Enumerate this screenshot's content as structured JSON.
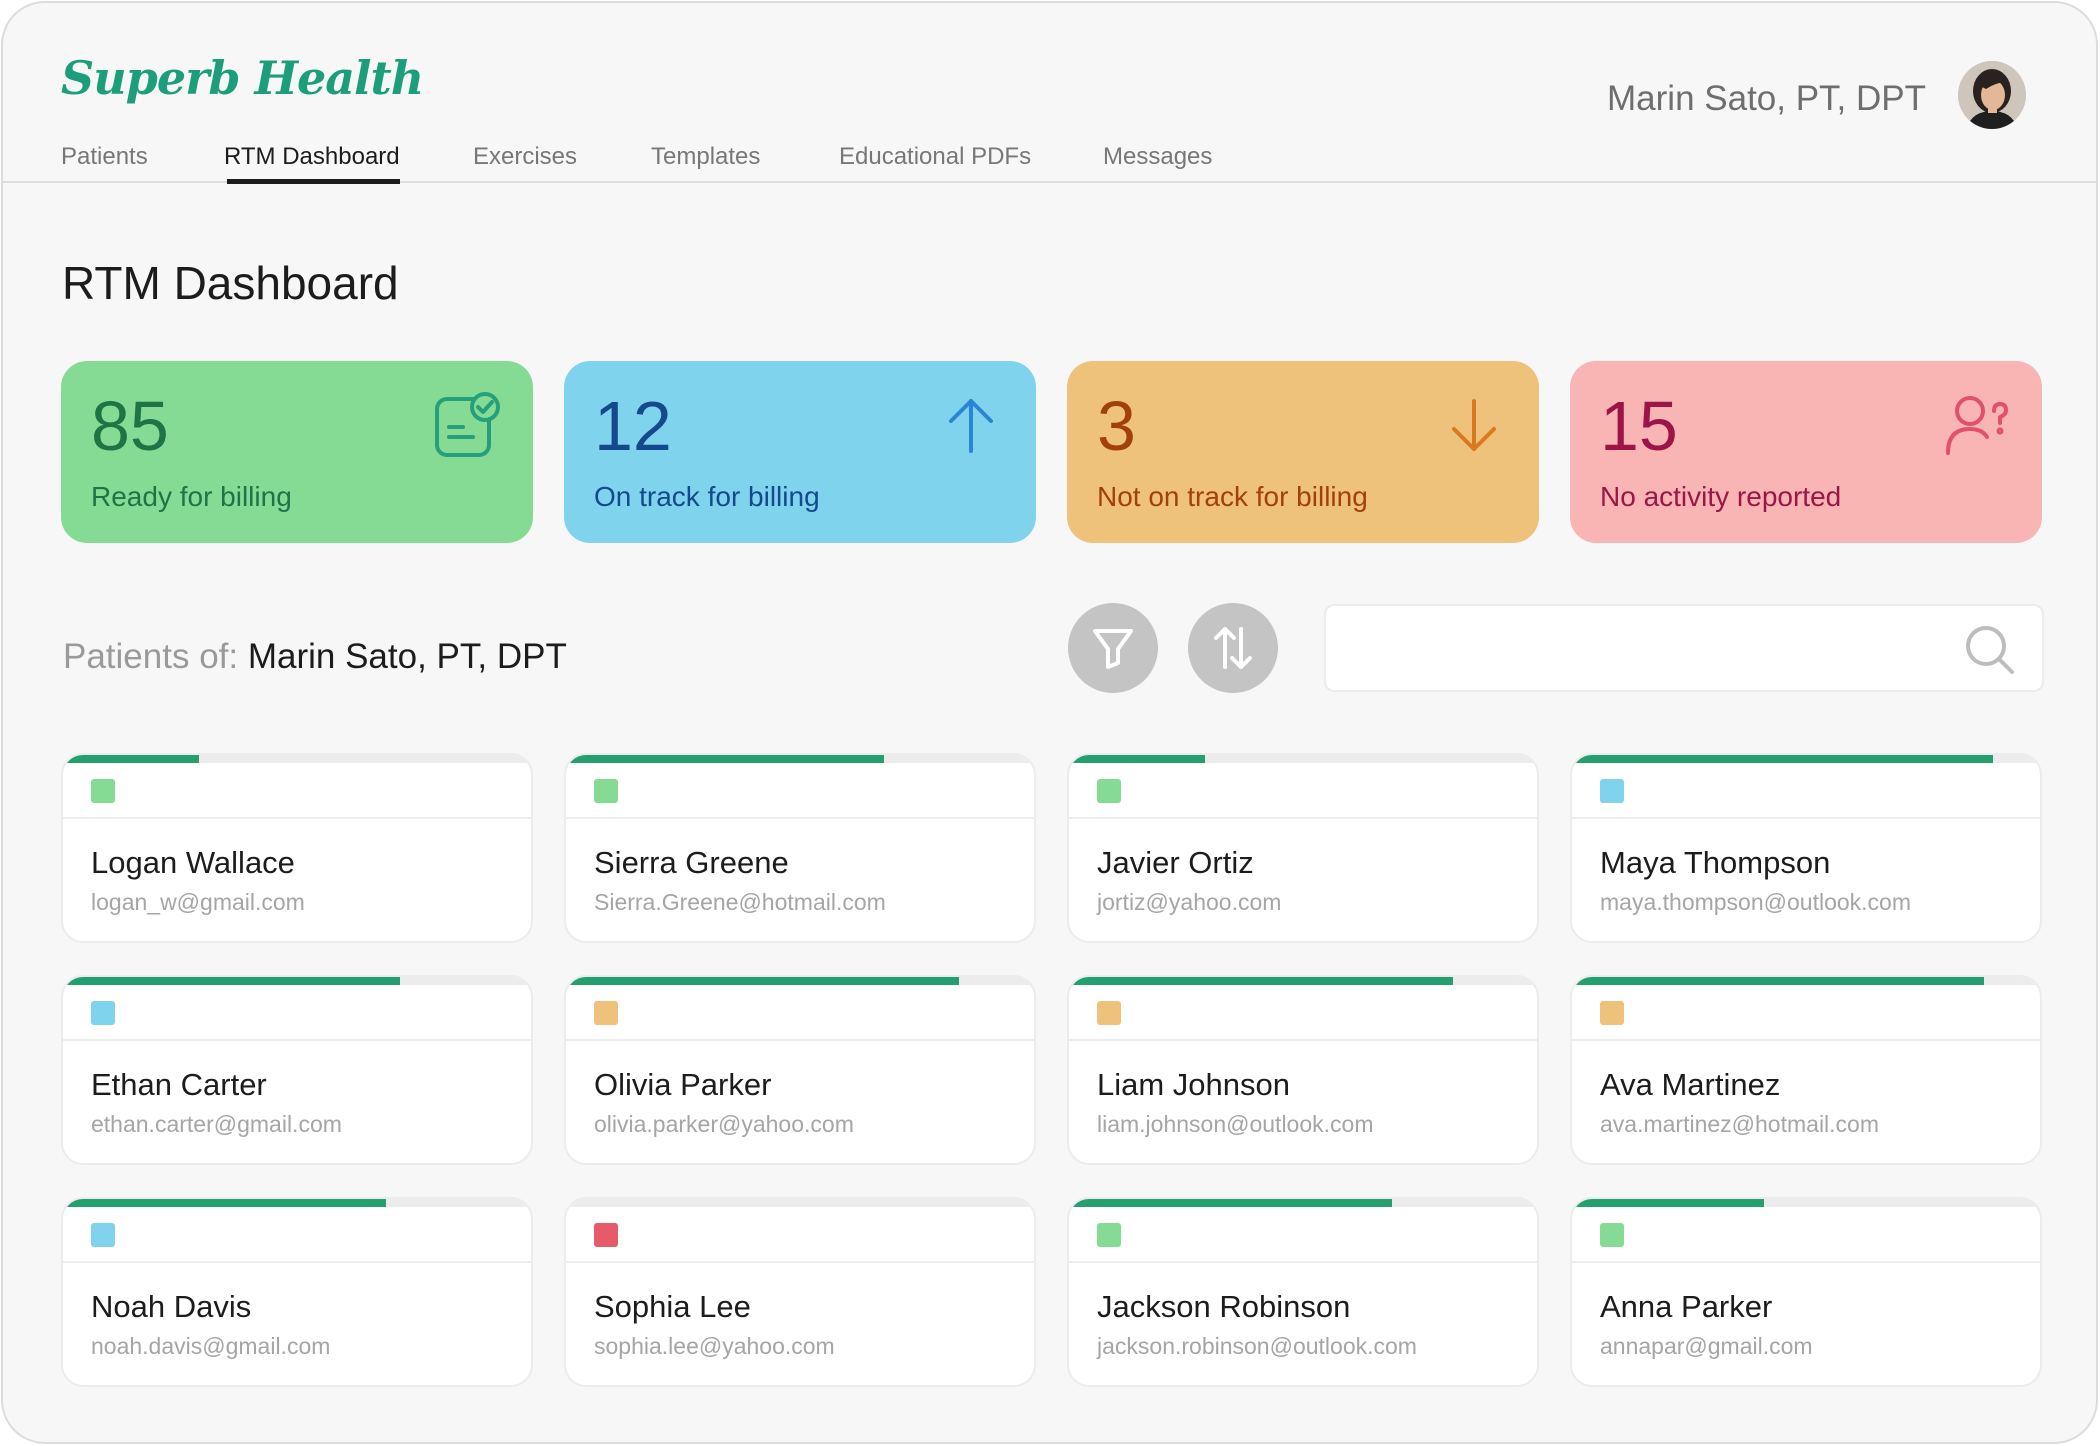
{
  "app": {
    "logo": "Superb Health"
  },
  "user": {
    "name": "Marin Sato, PT, DPT"
  },
  "nav": {
    "items": [
      {
        "label": "Patients"
      },
      {
        "label": "RTM Dashboard"
      },
      {
        "label": "Exercises"
      },
      {
        "label": "Templates"
      },
      {
        "label": "Educational PDFs"
      },
      {
        "label": "Messages"
      }
    ],
    "active": "RTM Dashboard"
  },
  "page": {
    "title": "RTM Dashboard"
  },
  "stats": [
    {
      "value": "85",
      "label": "Ready for billing",
      "icon": "clipboard-check-icon",
      "bg": "#86db94",
      "fg": "#1e7445",
      "icon_color": "#26a07a"
    },
    {
      "value": "12",
      "label": "On track for billing",
      "icon": "arrow-up-icon",
      "bg": "#80d3ed",
      "fg": "#124a8c",
      "icon_color": "#2a85d6"
    },
    {
      "value": "3",
      "label": "Not on track for billing",
      "icon": "arrow-down-icon",
      "bg": "#efc27b",
      "fg": "#a2400c",
      "icon_color": "#d87a1d"
    },
    {
      "value": "15",
      "label": "No activity reported",
      "icon": "user-question-icon",
      "bg": "#f9b5b4",
      "fg": "#9c1547",
      "icon_color": "#e2506c"
    }
  ],
  "patients_header": {
    "prefix": "Patients of:",
    "provider": "Marin Sato, PT, DPT"
  },
  "toolbar": {
    "filter_icon": "filter-icon",
    "sort_icon": "sort-icon",
    "search_icon": "search-icon",
    "search_value": ""
  },
  "status_colors": {
    "green": "#86db94",
    "blue": "#80d3ed",
    "orange": "#efc27b",
    "red": "#e65a6a"
  },
  "patients": [
    {
      "name": "Logan Wallace",
      "email": "logan_w@gmail.com",
      "status": "green",
      "progress": 0.29
    },
    {
      "name": "Sierra Greene",
      "email": "Sierra.Greene@hotmail.com",
      "status": "green",
      "progress": 0.68
    },
    {
      "name": "Javier Ortiz",
      "email": "jortiz@yahoo.com",
      "status": "green",
      "progress": 0.29
    },
    {
      "name": "Maya Thompson",
      "email": "maya.thompson@outlook.com",
      "status": "blue",
      "progress": 0.9
    },
    {
      "name": "Ethan Carter",
      "email": "ethan.carter@gmail.com",
      "status": "blue",
      "progress": 0.72
    },
    {
      "name": "Olivia Parker",
      "email": "olivia.parker@yahoo.com",
      "status": "orange",
      "progress": 0.84
    },
    {
      "name": "Liam Johnson",
      "email": "liam.johnson@outlook.com",
      "status": "orange",
      "progress": 0.82
    },
    {
      "name": "Ava Martinez",
      "email": "ava.martinez@hotmail.com",
      "status": "orange",
      "progress": 0.88
    },
    {
      "name": "Noah Davis",
      "email": "noah.davis@gmail.com",
      "status": "blue",
      "progress": 0.69
    },
    {
      "name": "Sophia Lee",
      "email": "sophia.lee@yahoo.com",
      "status": "red",
      "progress": 0.0
    },
    {
      "name": "Jackson Robinson",
      "email": "jackson.robinson@outlook.com",
      "status": "green",
      "progress": 0.69
    },
    {
      "name": "Anna Parker",
      "email": "annapar@gmail.com",
      "status": "green",
      "progress": 0.41
    }
  ]
}
